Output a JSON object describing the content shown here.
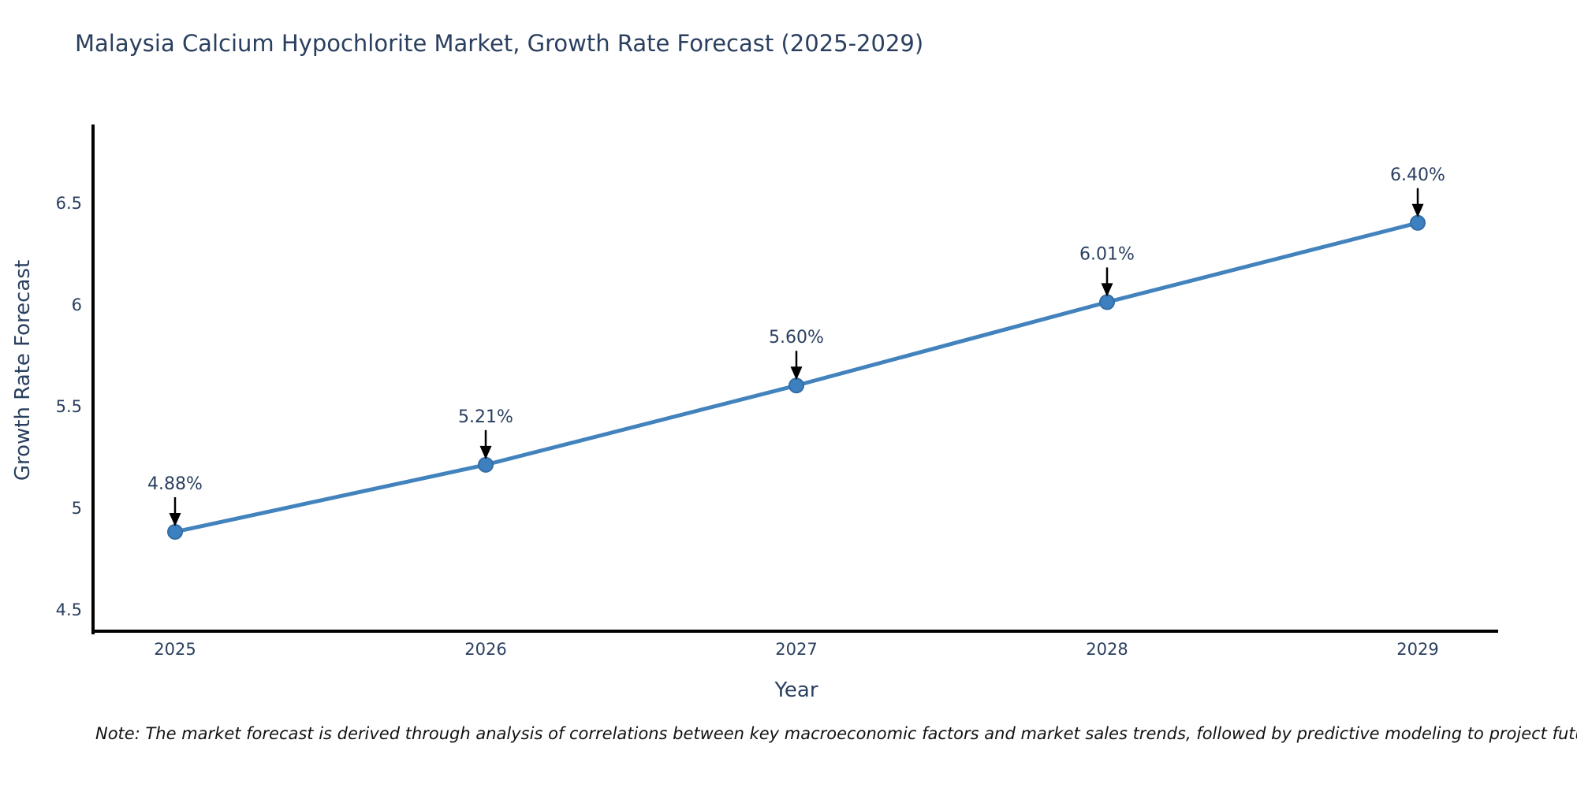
{
  "title": "Malaysia Calcium Hypochlorite Market, Growth Rate Forecast (2025-2029)",
  "note": "Note: The market forecast is derived through analysis of correlations between key macroeconomic factors and market sales trends, followed by predictive modeling to project future sales",
  "colors": {
    "line": "#4383bd",
    "marker_fill": "#3c80bf",
    "marker_edge": "#336da6",
    "axis": "#000000",
    "text": "#2a3f5f",
    "annotation_arrow": "#000000",
    "background": "#ffffff"
  },
  "chart_data": {
    "type": "line",
    "title": "Malaysia Calcium Hypochlorite Market, Growth Rate Forecast (2025-2029)",
    "xlabel": "Year",
    "ylabel": "Growth Rate Forecast",
    "x": [
      2025,
      2026,
      2027,
      2028,
      2029
    ],
    "values": [
      4.88,
      5.21,
      5.6,
      6.01,
      6.4
    ],
    "point_labels": [
      "4.88%",
      "5.21%",
      "5.60%",
      "6.01%",
      "6.40%"
    ],
    "xtick_labels": [
      "2025",
      "2026",
      "2027",
      "2028",
      "2029"
    ],
    "yticks": [
      4.5,
      5,
      5.5,
      6,
      6.5
    ],
    "ytick_labels": [
      "4.5",
      "5",
      "5.5",
      "6",
      "6.5"
    ],
    "ylim": [
      4.38,
      6.88
    ],
    "grid": false,
    "legend_position": "none",
    "annotations": "value labels with downward arrows above each point"
  }
}
